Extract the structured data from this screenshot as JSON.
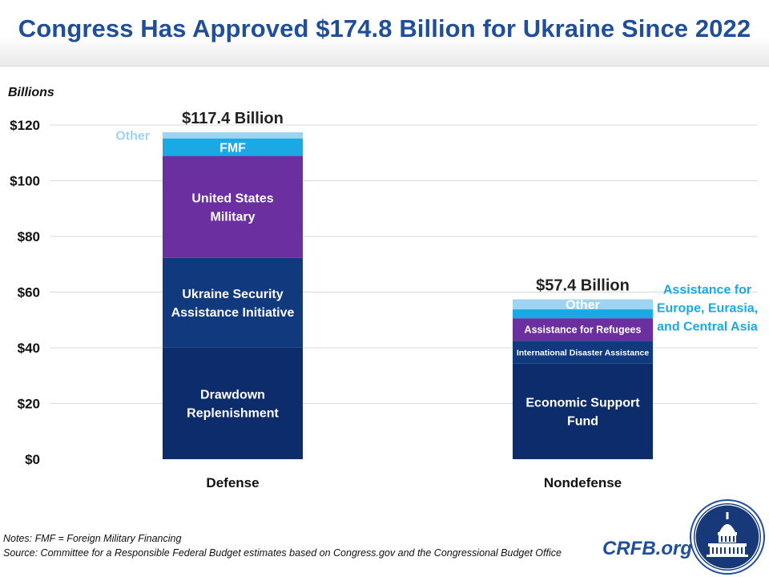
{
  "title": "Congress Has Approved $174.8 Billion for Ukraine Since 2022",
  "y_unit": "Billions",
  "notes_line1": "Notes: FMF = Foreign Military Financing",
  "notes_line2": "Source: Committee for a Responsible Federal Budget estimates based on Congress.gov  and the Congressional Budget Office",
  "brand": "CRFB.org",
  "chart_data": {
    "type": "bar",
    "stacked": true,
    "ylabel": "Billions",
    "ylim": [
      0,
      120
    ],
    "y_ticks": [
      {
        "value": 0,
        "label": "$0"
      },
      {
        "value": 20,
        "label": "$20"
      },
      {
        "value": 40,
        "label": "$40"
      },
      {
        "value": 60,
        "label": "$60"
      },
      {
        "value": 80,
        "label": "$80"
      },
      {
        "value": 100,
        "label": "$100"
      },
      {
        "value": 120,
        "label": "$120"
      }
    ],
    "grid": true,
    "bars": [
      {
        "category": "Defense",
        "total_label": "$117.4 Billion",
        "segments": [
          {
            "name": "Drawdown Replenishment",
            "lines": [
              "Drawdown",
              "Replenishment"
            ],
            "value": 40.2,
            "color": "#0d2c6b",
            "text_color": "#ffffff",
            "label_pos": "inside"
          },
          {
            "name": "Ukraine Security Assistance Initiative",
            "lines": [
              "Ukraine Security",
              "Assistance Initiative"
            ],
            "value": 32.1,
            "color": "#113a7e",
            "text_color": "#ffffff",
            "label_pos": "inside"
          },
          {
            "name": "United States Military",
            "lines": [
              "United States",
              "Military"
            ],
            "value": 36.6,
            "color": "#6b2fa0",
            "text_color": "#ffffff",
            "label_pos": "inside"
          },
          {
            "name": "FMF",
            "lines": [
              "FMF"
            ],
            "value": 6.3,
            "color": "#1ba9e6",
            "text_color": "#ffffff",
            "label_pos": "inside"
          },
          {
            "name": "Other",
            "lines": [
              "Other"
            ],
            "value": 2.2,
            "color": "#9fd3f2",
            "text_color": "#9fd3f2",
            "label_pos": "left"
          }
        ]
      },
      {
        "category": "Nondefense",
        "total_label": "$57.4 Billion",
        "segments": [
          {
            "name": "Economic Support Fund",
            "lines": [
              "Economic Support",
              "Fund"
            ],
            "value": 34.3,
            "color": "#0d2c6b",
            "text_color": "#ffffff",
            "label_pos": "inside"
          },
          {
            "name": "International  Disaster Assistance",
            "lines": [
              "International  Disaster Assistance"
            ],
            "value": 8.2,
            "color": "#113a7e",
            "text_color": "#ffffff",
            "label_pos": "inside"
          },
          {
            "name": "Assistance for Refugees",
            "lines": [
              "Assistance for Refugees"
            ],
            "value": 8.1,
            "color": "#6b2fa0",
            "text_color": "#ffffff",
            "label_pos": "inside"
          },
          {
            "name": "Assistance for Europe, Eurasia, and Central Asia",
            "lines": [
              "Assistance for",
              "Europe, Eurasia,",
              "and Central Asia"
            ],
            "value": 3.2,
            "color": "#1ba9e6",
            "text_color": "#1ba9e6",
            "label_pos": "right"
          },
          {
            "name": "Other",
            "lines": [
              "Other"
            ],
            "value": 3.6,
            "color": "#9fd3f2",
            "text_color": "#ffffff",
            "label_pos": "inside"
          }
        ]
      }
    ]
  }
}
